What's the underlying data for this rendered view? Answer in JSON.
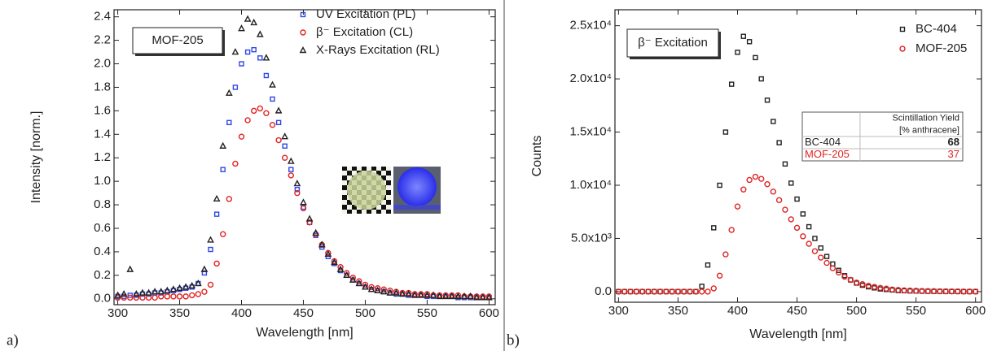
{
  "chart_data": [
    {
      "type": "scatter",
      "panel_label": "a)",
      "xlabel": "Wavelength [nm]",
      "ylabel": "Intensity [norm.]",
      "box_label": "MOF-205",
      "legend": "upper right",
      "xlim": [
        297,
        605
      ],
      "ylim": [
        -0.05,
        2.46
      ],
      "xticks": [
        300,
        350,
        400,
        450,
        500,
        550,
        600
      ],
      "yticks": [
        {
          "value": 0,
          "label": "0.0"
        },
        0.2,
        0.4,
        0.6,
        0.8,
        {
          "value": 1,
          "label": "1.0"
        },
        1.2,
        1.4,
        1.6,
        1.8,
        {
          "value": 2,
          "label": "2.0"
        },
        2.2,
        2.4
      ],
      "x": [
        300,
        305,
        310,
        315,
        320,
        325,
        330,
        335,
        340,
        345,
        350,
        355,
        360,
        365,
        370,
        375,
        380,
        385,
        390,
        395,
        400,
        405,
        410,
        415,
        420,
        425,
        430,
        435,
        440,
        445,
        450,
        455,
        460,
        465,
        470,
        475,
        480,
        485,
        490,
        495,
        500,
        505,
        510,
        515,
        520,
        525,
        530,
        535,
        540,
        545,
        550,
        555,
        560,
        565,
        570,
        575,
        580,
        585,
        590,
        595,
        600
      ],
      "series": [
        {
          "name": "UV Excitation (PL)",
          "color": "#2f45e8",
          "marker": "square",
          "values": [
            0.02,
            0.02,
            0.03,
            0.03,
            0.04,
            0.04,
            0.05,
            0.05,
            0.06,
            0.07,
            0.08,
            0.09,
            0.1,
            0.13,
            0.22,
            0.42,
            0.72,
            1.1,
            1.5,
            1.8,
            2.0,
            2.1,
            2.12,
            2.05,
            1.9,
            1.7,
            1.5,
            1.3,
            1.1,
            0.93,
            0.78,
            0.65,
            0.54,
            0.44,
            0.36,
            0.3,
            0.24,
            0.2,
            0.16,
            0.13,
            0.1,
            0.08,
            0.07,
            0.06,
            0.05,
            0.04,
            0.04,
            0.03,
            0.03,
            0.03,
            0.02,
            0.02,
            0.02,
            0.02,
            0.02,
            0.01,
            0.01,
            0.01,
            0.01,
            0.01,
            0.01
          ]
        },
        {
          "name": "β⁻ Excitation (CL)",
          "color": "#e02424",
          "marker": "circle",
          "values": [
            0.01,
            0.01,
            0.01,
            0.01,
            0.01,
            0.01,
            0.01,
            0.02,
            0.02,
            0.02,
            0.02,
            0.02,
            0.03,
            0.04,
            0.06,
            0.12,
            0.3,
            0.55,
            0.85,
            1.15,
            1.38,
            1.52,
            1.6,
            1.62,
            1.58,
            1.48,
            1.35,
            1.2,
            1.05,
            0.9,
            0.77,
            0.65,
            0.55,
            0.46,
            0.39,
            0.32,
            0.27,
            0.22,
            0.18,
            0.15,
            0.12,
            0.1,
            0.09,
            0.08,
            0.07,
            0.06,
            0.05,
            0.05,
            0.04,
            0.04,
            0.04,
            0.03,
            0.03,
            0.03,
            0.03,
            0.03,
            0.02,
            0.02,
            0.02,
            0.02,
            0.02
          ]
        },
        {
          "name": "X-Rays Excitation (RL)",
          "color": "#222222",
          "marker": "triangle",
          "values": [
            0.03,
            0.04,
            0.25,
            0.04,
            0.05,
            0.05,
            0.06,
            0.06,
            0.07,
            0.08,
            0.09,
            0.1,
            0.11,
            0.13,
            0.25,
            0.5,
            0.85,
            1.3,
            1.75,
            2.1,
            2.3,
            2.38,
            2.35,
            2.25,
            2.05,
            1.82,
            1.6,
            1.38,
            1.17,
            0.98,
            0.82,
            0.68,
            0.56,
            0.46,
            0.38,
            0.31,
            0.25,
            0.2,
            0.16,
            0.13,
            0.1,
            0.08,
            0.07,
            0.06,
            0.05,
            0.05,
            0.04,
            0.04,
            0.03,
            0.03,
            0.03,
            0.03,
            0.02,
            0.02,
            0.02,
            0.02,
            0.02,
            0.02,
            0.01,
            0.01,
            0.01
          ]
        }
      ]
    },
    {
      "type": "scatter",
      "panel_label": "b)",
      "xlabel": "Wavelength [nm]",
      "ylabel": "Counts",
      "box_label": "β⁻ Excitation",
      "legend": "upper right",
      "xlim": [
        297,
        605
      ],
      "ylim": [
        -1000,
        26500
      ],
      "xticks": [
        300,
        350,
        400,
        450,
        500,
        550,
        600
      ],
      "yticks": [
        {
          "value": 0,
          "label": "0.0"
        },
        {
          "value": 5000,
          "label": "5.0x10³"
        },
        {
          "value": 10000,
          "label": "1.0x10⁴"
        },
        {
          "value": 15000,
          "label": "1.5x10⁴"
        },
        {
          "value": 20000,
          "label": "2.0x10⁴"
        },
        {
          "value": 25000,
          "label": "2.5x10⁴"
        }
      ],
      "x": [
        300,
        305,
        310,
        315,
        320,
        325,
        330,
        335,
        340,
        345,
        350,
        355,
        360,
        365,
        370,
        375,
        380,
        385,
        390,
        395,
        400,
        405,
        410,
        415,
        420,
        425,
        430,
        435,
        440,
        445,
        450,
        455,
        460,
        465,
        470,
        475,
        480,
        485,
        490,
        495,
        500,
        505,
        510,
        515,
        520,
        525,
        530,
        535,
        540,
        545,
        550,
        555,
        560,
        565,
        570,
        575,
        580,
        585,
        590,
        595,
        600
      ],
      "series": [
        {
          "name": "BC-404",
          "color": "#222222",
          "marker": "square",
          "values": [
            0,
            0,
            0,
            0,
            0,
            0,
            0,
            0,
            0,
            0,
            0,
            0,
            0,
            0,
            500,
            2500,
            6000,
            10000,
            15000,
            19500,
            22500,
            24000,
            23500,
            22000,
            20000,
            18000,
            16000,
            14000,
            12000,
            10200,
            8700,
            7300,
            6100,
            5000,
            4100,
            3300,
            2600,
            2000,
            1500,
            1100,
            800,
            600,
            450,
            350,
            250,
            200,
            150,
            100,
            80,
            60,
            50,
            40,
            30,
            20,
            20,
            10,
            10,
            10,
            0,
            0,
            0
          ]
        },
        {
          "name": "MOF-205",
          "color": "#e02424",
          "marker": "circle",
          "values": [
            0,
            0,
            0,
            0,
            0,
            0,
            0,
            0,
            0,
            0,
            0,
            0,
            0,
            0,
            0,
            0,
            300,
            1500,
            3500,
            5800,
            8000,
            9600,
            10500,
            10800,
            10600,
            10100,
            9400,
            8600,
            7700,
            6800,
            6000,
            5200,
            4500,
            3800,
            3200,
            2700,
            2200,
            1800,
            1400,
            1100,
            850,
            700,
            550,
            450,
            350,
            280,
            200,
            160,
            120,
            100,
            80,
            60,
            50,
            40,
            30,
            25,
            20,
            15,
            10,
            5,
            5
          ]
        }
      ],
      "table": {
        "header": [
          "Scintillation Yield",
          "[% anthracene]"
        ],
        "rows": [
          [
            "BC-404",
            68
          ],
          [
            "MOF-205",
            37
          ]
        ]
      }
    }
  ]
}
